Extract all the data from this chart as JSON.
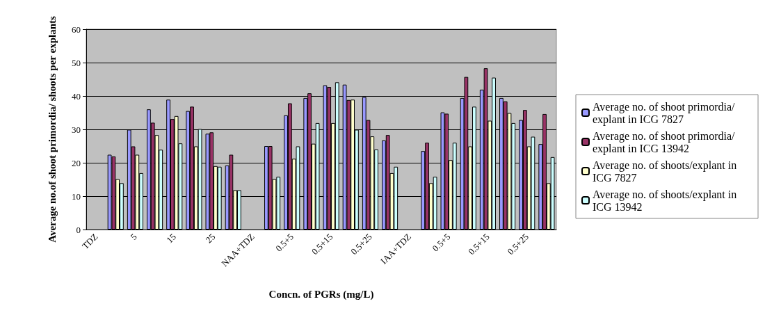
{
  "chart_data": {
    "type": "bar",
    "xlabel": "Concn. of PGRs (mg/L)",
    "ylabel": "Average no.of shoot primordia/ shoots per explants",
    "categories": [
      "TDZ",
      null,
      "5",
      null,
      "15",
      null,
      "25",
      null,
      "NAA+TDZ",
      null,
      "0.5+5",
      null,
      "0.5+15",
      null,
      "0.5+25",
      null,
      "IAA+TDZ",
      null,
      "0.5+5",
      null,
      "0.5+15",
      null,
      "0.5+25",
      null
    ],
    "series": [
      {
        "name": "Average no. of shoot primordia/explant in ICG 7827",
        "color": "#9999ff",
        "values": [
          null,
          22.4,
          29.9,
          36.0,
          38.9,
          35.5,
          28.7,
          19.2,
          null,
          25.0,
          34.2,
          39.4,
          43.2,
          43.4,
          39.7,
          26.7,
          null,
          23.5,
          35.1,
          39.4,
          41.9,
          39.4,
          32.8,
          25.6
        ]
      },
      {
        "name": "Average no. of shoot primordia/explant in ICG 13942",
        "color": "#993366",
        "values": [
          null,
          21.9,
          24.9,
          32.0,
          33.1,
          36.8,
          29.1,
          22.4,
          null,
          25.0,
          37.8,
          40.8,
          42.7,
          38.8,
          32.8,
          28.3,
          null,
          26.0,
          34.7,
          45.7,
          48.3,
          38.4,
          35.8,
          34.6
        ]
      },
      {
        "name": "Average no. of shoots/explant in ICG 7827",
        "color": "#ffffcc",
        "values": [
          null,
          15.1,
          22.4,
          28.3,
          34.0,
          24.9,
          19.0,
          11.8,
          null,
          15.1,
          21.2,
          25.7,
          31.9,
          38.9,
          27.9,
          16.9,
          null,
          13.9,
          20.8,
          24.9,
          32.6,
          34.9,
          24.9,
          13.9
        ]
      },
      {
        "name": "Average no. of shoots/explant in ICG 13942",
        "color": "#ccffff",
        "values": [
          null,
          13.9,
          16.9,
          23.9,
          25.8,
          30.1,
          18.8,
          11.8,
          null,
          15.8,
          24.9,
          31.9,
          44.1,
          29.9,
          24.0,
          18.8,
          null,
          15.8,
          26.0,
          36.8,
          45.5,
          31.9,
          27.8,
          21.7
        ]
      }
    ],
    "ylim": [
      0,
      60
    ],
    "yticks": [
      0,
      10,
      20,
      30,
      40,
      50,
      60
    ],
    "grid": "y",
    "legend": "right"
  }
}
